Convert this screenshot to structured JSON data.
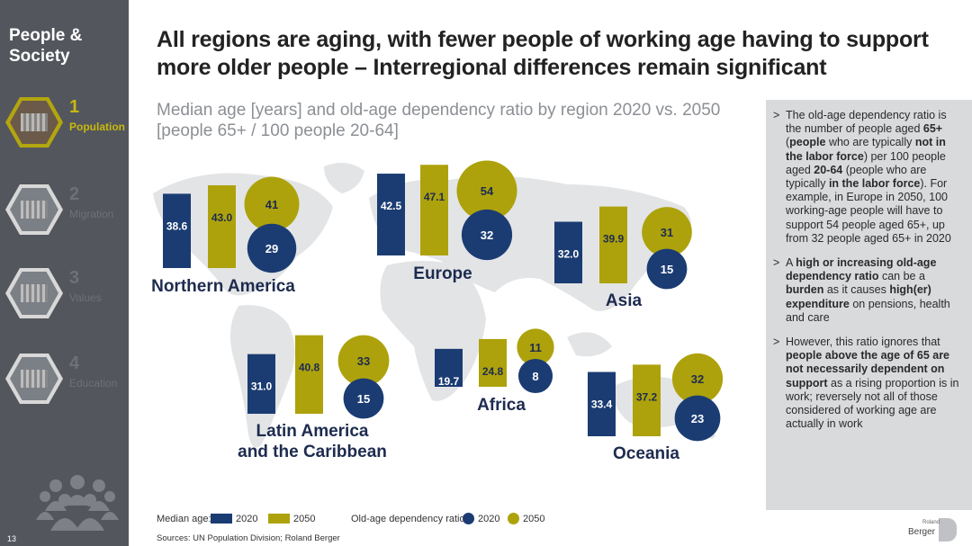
{
  "sidebar": {
    "title": "People & Society",
    "items": [
      {
        "num": "1",
        "label": "Population",
        "active": true
      },
      {
        "num": "2",
        "label": "Migration",
        "active": false
      },
      {
        "num": "3",
        "label": "Values",
        "active": false
      },
      {
        "num": "4",
        "label": "Education",
        "active": false
      }
    ],
    "page_number": "13"
  },
  "header": {
    "title": "All regions are aging, with fewer people of working age having to support more older people – Interregional differences remain significant",
    "subtitle": "Median age [years] and old-age dependency ratio by region 2020 vs. 2050 [people 65+ / 100 people 20-64]"
  },
  "notes": [
    "The old-age dependency ratio is the number of people aged <b>65+</b> (<b>people</b> who are typically <b>not in the labor force</b>) per 100 people aged <b>20-64</b> (people who are typically <b>in the labor force</b>). For example, in Europe in 2050, 100 working-age people will have to support 54 people aged 65+, up from 32 people aged 65+ in 2020",
    "A <b>high or increasing old-age dependency ratio</b> can be a <b>burden</b> as it causes <b>high(er) expenditure</b> on pensions, health and care",
    "However, this ratio ignores that <b>people above the age of 65 are not necessarily dependent on support</b> as a rising proportion is in work; reversely not all of those considered of working age are actually in work"
  ],
  "colors": {
    "navy": "#1b3c73",
    "olive": "#ada20c",
    "sidebar": "#53565c",
    "map": "#e3e4e6",
    "panel": "#d9dadc"
  },
  "legend": {
    "median_label": "Median age:",
    "dependency_label": "Old-age dependency ratio:",
    "year_a": "2020",
    "year_b": "2050"
  },
  "sources": "Sources: UN Population Division; Roland Berger",
  "logo": {
    "small": "Roland",
    "main": "Berger"
  },
  "chart_data": {
    "type": "bar",
    "title": "Median age [years] and old-age dependency ratio by region 2020 vs. 2050",
    "years": [
      "2020",
      "2050"
    ],
    "regions": [
      {
        "name": "Northern America",
        "median_age": [
          38.6,
          43.0
        ],
        "dependency_ratio": [
          29,
          41
        ]
      },
      {
        "name": "Europe",
        "median_age": [
          42.5,
          47.1
        ],
        "dependency_ratio": [
          32,
          54
        ]
      },
      {
        "name": "Asia",
        "median_age": [
          32.0,
          39.9
        ],
        "dependency_ratio": [
          15,
          31
        ]
      },
      {
        "name": "Latin America and the Caribbean",
        "median_age": [
          31.0,
          40.8
        ],
        "dependency_ratio": [
          15,
          33
        ]
      },
      {
        "name": "Africa",
        "median_age": [
          19.7,
          24.8
        ],
        "dependency_ratio": [
          8,
          11
        ]
      },
      {
        "name": "Oceania",
        "median_age": [
          33.4,
          37.2
        ],
        "dependency_ratio": [
          23,
          32
        ]
      }
    ]
  }
}
